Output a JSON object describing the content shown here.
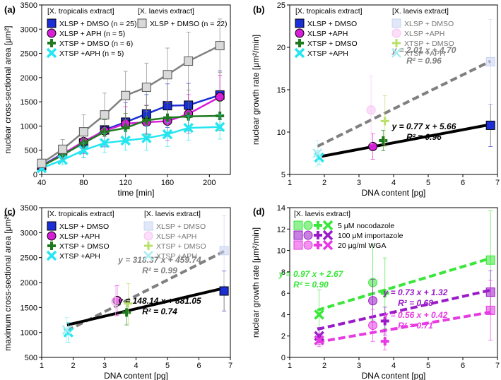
{
  "colors": {
    "blue": "#1b2fd6",
    "magenta": "#d81fd8",
    "green": "#1f7a1f",
    "cyan": "#25e6f0",
    "gray": "#808080",
    "black": "#000000",
    "lightblue": "#c8d4f2",
    "pink": "#f7c2f2",
    "lightgreen": "#b9e06a",
    "lightcyan": "#a8ecf2",
    "nocoGreen": "#39e639",
    "importPurple": "#9a1ac7",
    "wgaMagenta": "#e83ae3"
  },
  "chart_data": [
    {
      "id": "a",
      "panel_label": "(a)",
      "type": "line",
      "xlabel": "time [min]",
      "ylabel": "nuclear cross-sectional area [μm²]",
      "xlim": [
        40,
        220
      ],
      "ylim": [
        0,
        3500
      ],
      "xticks": [
        40,
        80,
        120,
        160,
        200
      ],
      "yticks": [
        0,
        500,
        1000,
        1500,
        2000,
        2500,
        3000,
        3500
      ],
      "legend_headers": [
        "[X. tropicalis extract]",
        "[X. laevis extract]"
      ],
      "series": [
        {
          "name": "XLSP + DMSO (n = 25)",
          "color": "blue",
          "marker": "square",
          "x": [
            40,
            60,
            80,
            100,
            120,
            140,
            160,
            180,
            210
          ],
          "y": [
            180,
            430,
            650,
            920,
            1080,
            1250,
            1420,
            1430,
            1640
          ],
          "err": [
            50,
            150,
            300,
            350,
            400,
            400,
            450,
            450,
            500
          ]
        },
        {
          "name": "XLSP + APH (n = 5)",
          "color": "magenta",
          "marker": "circle",
          "x": [
            40,
            60,
            80,
            100,
            120,
            140,
            160,
            180,
            210
          ],
          "y": [
            170,
            420,
            680,
            900,
            1050,
            1080,
            1100,
            1250,
            1600
          ],
          "err": [
            50,
            150,
            250,
            300,
            350,
            350,
            400,
            400,
            450
          ]
        },
        {
          "name": "XTSP + DMSO (n = 6)",
          "color": "green",
          "marker": "plus",
          "x": [
            40,
            60,
            80,
            100,
            120,
            140,
            160,
            180,
            210
          ],
          "y": [
            170,
            400,
            650,
            880,
            960,
            1120,
            1170,
            1200,
            1210
          ],
          "err": [
            50,
            100,
            200,
            250,
            300,
            300,
            300,
            300,
            300
          ]
        },
        {
          "name": "XTSP +APH (n = 5)",
          "color": "cyan",
          "marker": "x",
          "x": [
            40,
            60,
            80,
            100,
            120,
            140,
            160,
            180,
            210
          ],
          "y": [
            130,
            300,
            500,
            650,
            700,
            750,
            830,
            960,
            980
          ],
          "err": [
            50,
            100,
            150,
            200,
            200,
            250,
            250,
            250,
            250
          ]
        },
        {
          "name": "XLSP + DMSO (n = 22)",
          "color": "gray",
          "marker": "square-light",
          "x": [
            40,
            60,
            80,
            100,
            120,
            140,
            160,
            180,
            210
          ],
          "y": [
            230,
            520,
            880,
            1230,
            1630,
            1800,
            2060,
            2340,
            2660
          ],
          "err": [
            80,
            200,
            350,
            450,
            500,
            500,
            550,
            600,
            550
          ]
        }
      ]
    },
    {
      "id": "b",
      "panel_label": "(b)",
      "type": "scatter",
      "xlabel": "DNA content [pg]",
      "ylabel": "nuclear growth rate [μm²/min]",
      "xlim": [
        1,
        7
      ],
      "ylim": [
        5,
        25
      ],
      "xticks": [
        1,
        2,
        3,
        4,
        5,
        6,
        7
      ],
      "yticks": [
        5,
        10,
        15,
        20,
        25
      ],
      "legend_headers": [
        "[X. tropicalis extract]",
        "[X. laevis extract]"
      ],
      "series": [
        {
          "name": "XLSP + DMSO",
          "color": "blue",
          "marker": "square",
          "x": [
            6.8
          ],
          "y": [
            10.8
          ],
          "err": [
            2.5
          ]
        },
        {
          "name": "XLSP +APH",
          "color": "magenta",
          "marker": "circle",
          "x": [
            3.4
          ],
          "y": [
            8.3
          ],
          "err": [
            1.5
          ]
        },
        {
          "name": "XTSP + DMSO",
          "color": "green",
          "marker": "plus",
          "x": [
            3.7
          ],
          "y": [
            9.0
          ],
          "err": [
            1.2
          ]
        },
        {
          "name": "XTSP +APH",
          "color": "cyan",
          "marker": "x",
          "x": [
            1.85
          ],
          "y": [
            7.0
          ],
          "err": [
            0.8
          ]
        },
        {
          "name": "XLSP + DMSO",
          "color": "lightblue",
          "marker": "square-light",
          "x": [
            6.8
          ],
          "y": [
            18.3
          ],
          "err": [
            5.0
          ]
        },
        {
          "name": "XLSP +APH",
          "color": "pink",
          "marker": "circle-light",
          "x": [
            3.35
          ],
          "y": [
            12.6
          ],
          "err": [
            4.0
          ]
        },
        {
          "name": "XTSP + DMSO",
          "color": "lightgreen",
          "marker": "plus-light",
          "x": [
            3.75
          ],
          "y": [
            11.3
          ],
          "err": [
            3.0
          ]
        },
        {
          "name": "XTSP +APH",
          "color": "lightcyan",
          "marker": "x-light",
          "x": [
            1.8
          ],
          "y": [
            7.5
          ],
          "err": [
            1.5
          ]
        }
      ],
      "fits": [
        {
          "equation": "y = 2.01 x + 4.70",
          "r2": "R² = 0.96",
          "slope": 2.01,
          "intercept": 4.7,
          "color": "gray",
          "dashed": true,
          "x0": 1.8,
          "x1": 6.8
        },
        {
          "equation": "y = 0.77 x + 5.66",
          "r2": "R² = 0.96",
          "slope": 0.77,
          "intercept": 5.66,
          "color": "black",
          "dashed": false,
          "x0": 1.8,
          "x1": 6.8
        }
      ]
    },
    {
      "id": "c",
      "panel_label": "(c)",
      "type": "scatter",
      "xlabel": "DNA content [pg]",
      "ylabel": "maximum cross-sectional area [μm²]",
      "xlim": [
        1,
        7
      ],
      "ylim": [
        500,
        3500
      ],
      "xticks": [
        1,
        2,
        3,
        4,
        5,
        6,
        7
      ],
      "yticks": [
        500,
        1000,
        1500,
        2000,
        2500,
        3000,
        3500
      ],
      "legend_headers": [
        "[X. tropicalis extract]",
        "[X. laevis extract]"
      ],
      "series": [
        {
          "name": "XLSP + DMSO",
          "color": "blue",
          "marker": "square",
          "x": [
            6.8
          ],
          "y": [
            1830
          ],
          "err": [
            400
          ]
        },
        {
          "name": "XLSP +APH",
          "color": "magenta",
          "marker": "circle",
          "x": [
            3.4
          ],
          "y": [
            1640
          ],
          "err": [
            300
          ]
        },
        {
          "name": "XTSP + DMSO",
          "color": "green",
          "marker": "plus",
          "x": [
            3.7
          ],
          "y": [
            1400
          ],
          "err": [
            250
          ]
        },
        {
          "name": "XTSP +APH",
          "color": "cyan",
          "marker": "x",
          "x": [
            1.85
          ],
          "y": [
            1000
          ],
          "err": [
            200
          ]
        },
        {
          "name": "XLSP + DMSO",
          "color": "lightblue",
          "marker": "square-light",
          "x": [
            6.8
          ],
          "y": [
            2640
          ],
          "err": [
            700
          ]
        },
        {
          "name": "XLSP +APH",
          "color": "pink",
          "marker": "circle-light",
          "x": [
            3.35
          ],
          "y": [
            1620
          ],
          "err": [
            300
          ]
        },
        {
          "name": "XTSP + DMSO",
          "color": "lightgreen",
          "marker": "plus-light",
          "x": [
            3.75
          ],
          "y": [
            1580
          ],
          "err": [
            400
          ]
        },
        {
          "name": "XTSP +APH",
          "color": "lightcyan",
          "marker": "x-light",
          "x": [
            1.8
          ],
          "y": [
            1050
          ],
          "err": [
            250
          ]
        }
      ],
      "fits": [
        {
          "equation": "y = 318.37 x + 459.74",
          "r2": "R² = 0.99",
          "slope": 318.37,
          "intercept": 459.74,
          "color": "gray",
          "dashed": true,
          "x0": 1.8,
          "x1": 6.8
        },
        {
          "equation": "y = 148.14 x + 881.05",
          "r2": "R² = 0.74",
          "slope": 148.14,
          "intercept": 881.05,
          "color": "black",
          "dashed": false,
          "x0": 1.8,
          "x1": 6.8
        }
      ]
    },
    {
      "id": "d",
      "panel_label": "(d)",
      "type": "scatter",
      "xlabel": "DNA content [pg]",
      "ylabel": "nuclear growth rate [μm²/min]",
      "xlim": [
        1,
        7
      ],
      "ylim": [
        0,
        14
      ],
      "xticks": [
        1,
        2,
        3,
        4,
        5,
        6,
        7
      ],
      "yticks": [
        0,
        2,
        4,
        6,
        8,
        10,
        12,
        14
      ],
      "legend_headers": [
        "[X. laevis extract]"
      ],
      "legend": [
        {
          "name": "5 μM nocodazole",
          "color": "nocoGreen"
        },
        {
          "name": "100 μM importazole",
          "color": "importPurple"
        },
        {
          "name": "20 μg/ml WGA",
          "color": "wgaMagenta"
        }
      ],
      "series": [
        {
          "color": "nocoGreen",
          "marker": "square-light",
          "x": [
            6.8
          ],
          "y": [
            9.1
          ],
          "err": [
            4.6
          ]
        },
        {
          "color": "nocoGreen",
          "marker": "circle-light",
          "x": [
            3.4
          ],
          "y": [
            7.0
          ],
          "err": [
            3.5
          ]
        },
        {
          "color": "nocoGreen",
          "marker": "plus",
          "x": [
            3.75
          ],
          "y": [
            6.0
          ],
          "err": [
            3.3
          ]
        },
        {
          "color": "nocoGreen",
          "marker": "x",
          "x": [
            1.85
          ],
          "y": [
            4.0
          ],
          "err": [
            2.3
          ]
        },
        {
          "color": "importPurple",
          "marker": "square-light",
          "x": [
            6.8
          ],
          "y": [
            6.1
          ],
          "err": [
            2.0
          ]
        },
        {
          "color": "importPurple",
          "marker": "circle-light",
          "x": [
            3.4
          ],
          "y": [
            5.3
          ],
          "err": [
            2.0
          ]
        },
        {
          "color": "importPurple",
          "marker": "plus",
          "x": [
            3.75
          ],
          "y": [
            3.4
          ],
          "err": [
            1.3
          ]
        },
        {
          "color": "importPurple",
          "marker": "x",
          "x": [
            1.85
          ],
          "y": [
            2.0
          ],
          "err": [
            0.8
          ]
        },
        {
          "color": "wgaMagenta",
          "marker": "square-light",
          "x": [
            6.8
          ],
          "y": [
            4.4
          ],
          "err": [
            2.8
          ]
        },
        {
          "color": "wgaMagenta",
          "marker": "circle-light",
          "x": [
            3.4
          ],
          "y": [
            3.0
          ],
          "err": [
            1.5
          ]
        },
        {
          "color": "wgaMagenta",
          "marker": "plus",
          "x": [
            3.75
          ],
          "y": [
            1.5
          ],
          "err": [
            0.8
          ]
        },
        {
          "color": "wgaMagenta",
          "marker": "x",
          "x": [
            1.85
          ],
          "y": [
            1.6
          ],
          "err": [
            0.6
          ]
        }
      ],
      "fits": [
        {
          "equation": "y = 0.97 x + 2.67",
          "r2": "R² = 0.90",
          "slope": 0.97,
          "intercept": 2.67,
          "color": "nocoGreen",
          "dashed": true,
          "x0": 1.8,
          "x1": 6.8
        },
        {
          "equation": "y = 0.73 x + 1.32",
          "r2": "R² = 0.68",
          "slope": 0.73,
          "intercept": 1.32,
          "color": "importPurple",
          "dashed": true,
          "x0": 1.8,
          "x1": 6.8
        },
        {
          "equation": "y = 0.56 x + 0.42",
          "r2": "R² = 0.71",
          "slope": 0.56,
          "intercept": 0.42,
          "color": "wgaMagenta",
          "dashed": true,
          "x0": 1.8,
          "x1": 6.8
        }
      ]
    }
  ]
}
